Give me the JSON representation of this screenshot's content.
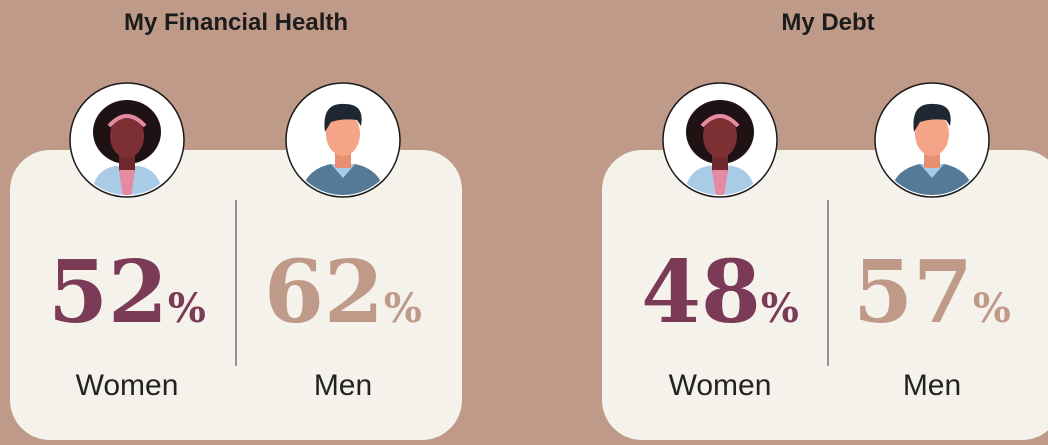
{
  "panels": [
    {
      "title": "My Financial Health",
      "items": [
        {
          "label": "Women",
          "value": 52,
          "unit": "%"
        },
        {
          "label": "Men",
          "value": 62,
          "unit": "%"
        }
      ]
    },
    {
      "title": "My Debt",
      "items": [
        {
          "label": "Women",
          "value": 48,
          "unit": "%"
        },
        {
          "label": "Men",
          "value": 57,
          "unit": "%"
        }
      ]
    }
  ]
}
